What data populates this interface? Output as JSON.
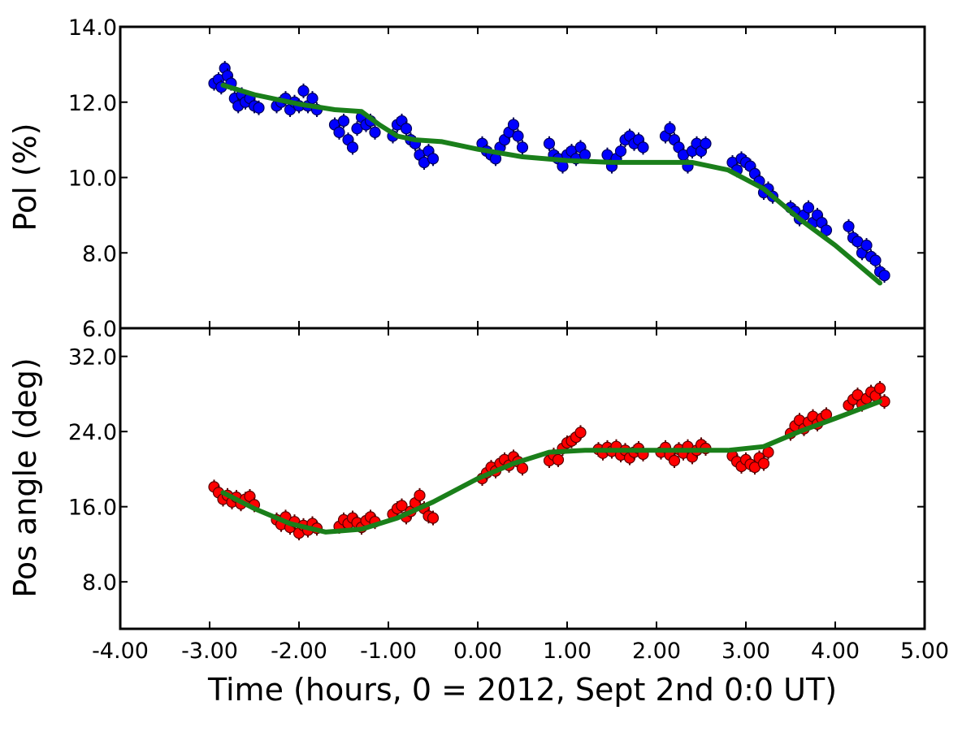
{
  "chart_data": [
    {
      "type": "scatter",
      "panel": "top",
      "xlabel": "",
      "ylabel": "Pol (%)",
      "xlim": [
        -4.0,
        5.0
      ],
      "ylim": [
        6.0,
        14.0
      ],
      "xticks": [
        -4.0,
        -3.0,
        -2.0,
        -1.0,
        0.0,
        1.0,
        2.0,
        3.0,
        4.0,
        5.0
      ],
      "yticks": [
        6.0,
        8.0,
        10.0,
        12.0,
        14.0
      ],
      "ytick_labels": [
        "6.0",
        "8.0",
        "10.0",
        "12.0",
        "14.0"
      ],
      "grid": false,
      "marker_color": "#0000ff",
      "line_color": "#1a7f1a",
      "series": [
        {
          "kind": "points",
          "x": [
            -2.95,
            -2.9,
            -2.87,
            -2.83,
            -2.8,
            -2.76,
            -2.72,
            -2.68,
            -2.64,
            -2.6,
            -2.55,
            -2.5,
            -2.45,
            -2.25,
            -2.2,
            -2.15,
            -2.1,
            -2.05,
            -2.0,
            -1.95,
            -1.9,
            -1.85,
            -1.8,
            -1.6,
            -1.55,
            -1.5,
            -1.45,
            -1.4,
            -1.35,
            -1.3,
            -1.25,
            -1.2,
            -1.15,
            -0.95,
            -0.9,
            -0.85,
            -0.8,
            -0.75,
            -0.7,
            -0.65,
            -0.6,
            -0.55,
            -0.5,
            0.05,
            0.1,
            0.15,
            0.2,
            0.25,
            0.3,
            0.35,
            0.4,
            0.45,
            0.5,
            0.8,
            0.85,
            0.9,
            0.95,
            1.0,
            1.05,
            1.1,
            1.15,
            1.2,
            1.45,
            1.5,
            1.55,
            1.6,
            1.65,
            1.7,
            1.75,
            1.8,
            1.85,
            2.1,
            2.15,
            2.2,
            2.25,
            2.3,
            2.35,
            2.4,
            2.45,
            2.5,
            2.55,
            2.85,
            2.9,
            2.95,
            3.0,
            3.05,
            3.1,
            3.15,
            3.2,
            3.25,
            3.3,
            3.5,
            3.55,
            3.6,
            3.65,
            3.7,
            3.75,
            3.8,
            3.85,
            3.9,
            4.15,
            4.2,
            4.25,
            4.3,
            4.35,
            4.4,
            4.45,
            4.5,
            4.55
          ],
          "y": [
            12.5,
            12.6,
            12.4,
            12.9,
            12.7,
            12.5,
            12.1,
            11.9,
            12.2,
            12.0,
            12.1,
            11.9,
            11.85,
            11.9,
            12.0,
            12.1,
            11.8,
            12.0,
            11.9,
            12.3,
            11.9,
            12.1,
            11.8,
            11.4,
            11.2,
            11.5,
            11.0,
            10.8,
            11.3,
            11.6,
            11.4,
            11.5,
            11.2,
            11.1,
            11.4,
            11.5,
            11.3,
            11.0,
            10.9,
            10.6,
            10.4,
            10.7,
            10.5,
            10.9,
            10.7,
            10.6,
            10.5,
            10.8,
            11.0,
            11.2,
            11.4,
            11.1,
            10.8,
            10.9,
            10.6,
            10.5,
            10.3,
            10.6,
            10.7,
            10.5,
            10.8,
            10.6,
            10.6,
            10.3,
            10.5,
            10.7,
            11.0,
            11.1,
            10.9,
            11.0,
            10.8,
            11.1,
            11.3,
            11.0,
            10.8,
            10.6,
            10.3,
            10.7,
            10.9,
            10.7,
            10.9,
            10.4,
            10.2,
            10.5,
            10.4,
            10.3,
            10.1,
            9.9,
            9.6,
            9.7,
            9.5,
            9.2,
            9.1,
            8.9,
            9.0,
            9.2,
            8.8,
            9.0,
            8.8,
            8.6,
            8.7,
            8.4,
            8.3,
            8.0,
            8.2,
            7.9,
            7.8,
            7.5,
            7.4
          ]
        },
        {
          "kind": "line",
          "x": [
            -2.85,
            -2.5,
            -2.0,
            -1.6,
            -1.3,
            -1.1,
            -0.9,
            -0.7,
            -0.4,
            0.0,
            0.5,
            1.0,
            1.5,
            2.0,
            2.4,
            2.8,
            3.2,
            3.6,
            4.0,
            4.3,
            4.5
          ],
          "y": [
            12.45,
            12.2,
            11.95,
            11.8,
            11.75,
            11.4,
            11.1,
            11.0,
            10.95,
            10.75,
            10.55,
            10.45,
            10.4,
            10.4,
            10.4,
            10.2,
            9.7,
            8.9,
            8.2,
            7.6,
            7.2
          ]
        }
      ]
    },
    {
      "type": "scatter",
      "panel": "bottom",
      "xlabel": "Time (hours, 0 = 2012, Sept 2nd 0:0 UT)",
      "ylabel": "Pos angle (deg)",
      "xlim": [
        -4.0,
        5.0
      ],
      "ylim": [
        3.0,
        35.0
      ],
      "xticks": [
        -4.0,
        -3.0,
        -2.0,
        -1.0,
        0.0,
        1.0,
        2.0,
        3.0,
        4.0,
        5.0
      ],
      "xtick_labels": [
        "-4.00",
        "-3.00",
        "-2.00",
        "-1.00",
        "0.00",
        "1.00",
        "2.00",
        "3.00",
        "4.00",
        "5.00"
      ],
      "yticks": [
        8.0,
        16.0,
        24.0,
        32.0
      ],
      "ytick_labels": [
        "8.0",
        "16.0",
        "24.0",
        "32.0"
      ],
      "grid": false,
      "marker_color": "#ff0000",
      "line_color": "#1a7f1a",
      "series": [
        {
          "kind": "points",
          "x": [
            -2.95,
            -2.9,
            -2.85,
            -2.8,
            -2.75,
            -2.7,
            -2.65,
            -2.6,
            -2.55,
            -2.5,
            -2.25,
            -2.2,
            -2.15,
            -2.1,
            -2.05,
            -2.0,
            -1.95,
            -1.9,
            -1.85,
            -1.8,
            -1.55,
            -1.5,
            -1.45,
            -1.4,
            -1.35,
            -1.3,
            -1.25,
            -1.2,
            -1.15,
            -0.95,
            -0.9,
            -0.85,
            -0.8,
            -0.75,
            -0.7,
            -0.65,
            -0.6,
            -0.55,
            -0.5,
            0.05,
            0.1,
            0.15,
            0.2,
            0.25,
            0.3,
            0.35,
            0.4,
            0.45,
            0.5,
            0.8,
            0.85,
            0.9,
            0.95,
            1.0,
            1.05,
            1.1,
            1.15,
            1.35,
            1.4,
            1.45,
            1.5,
            1.55,
            1.6,
            1.65,
            1.7,
            1.75,
            1.8,
            1.85,
            2.05,
            2.1,
            2.15,
            2.2,
            2.25,
            2.3,
            2.35,
            2.4,
            2.45,
            2.5,
            2.55,
            2.85,
            2.9,
            2.95,
            3.0,
            3.05,
            3.1,
            3.15,
            3.2,
            3.25,
            3.5,
            3.55,
            3.6,
            3.65,
            3.7,
            3.75,
            3.8,
            3.85,
            3.9,
            4.15,
            4.2,
            4.25,
            4.3,
            4.35,
            4.4,
            4.45,
            4.5,
            4.55
          ],
          "y": [
            18.1,
            17.5,
            16.8,
            17.2,
            16.5,
            17.0,
            16.3,
            16.8,
            17.1,
            16.2,
            14.6,
            14.1,
            14.9,
            13.8,
            14.4,
            13.2,
            14.0,
            13.5,
            14.2,
            13.7,
            13.9,
            14.6,
            14.2,
            14.8,
            14.3,
            13.8,
            14.5,
            14.9,
            14.4,
            15.2,
            15.8,
            16.1,
            14.9,
            15.5,
            16.4,
            17.2,
            15.8,
            15.0,
            14.8,
            19.0,
            19.6,
            20.2,
            19.8,
            20.6,
            21.0,
            20.4,
            21.3,
            20.8,
            20.1,
            20.9,
            21.5,
            21.0,
            22.2,
            22.8,
            23.0,
            23.4,
            23.9,
            22.1,
            21.7,
            22.3,
            21.9,
            22.4,
            21.5,
            22.0,
            21.2,
            21.8,
            22.2,
            21.6,
            21.8,
            22.3,
            21.5,
            20.9,
            22.1,
            21.7,
            22.4,
            21.3,
            22.0,
            22.6,
            22.2,
            21.4,
            20.8,
            20.3,
            21.0,
            20.5,
            20.2,
            21.2,
            20.6,
            21.8,
            23.8,
            24.6,
            25.2,
            24.3,
            25.0,
            25.6,
            24.8,
            25.4,
            25.8,
            26.8,
            27.4,
            27.9,
            26.9,
            27.5,
            28.2,
            27.8,
            28.6,
            27.2
          ]
        },
        {
          "kind": "line",
          "x": [
            -2.85,
            -2.5,
            -2.1,
            -1.7,
            -1.3,
            -0.9,
            -0.5,
            0.0,
            0.4,
            0.8,
            1.2,
            1.6,
            2.0,
            2.4,
            2.8,
            3.2,
            3.6,
            4.0,
            4.5
          ],
          "y": [
            17.5,
            15.8,
            14.2,
            13.3,
            13.6,
            14.8,
            16.5,
            19.0,
            20.6,
            21.8,
            22.0,
            22.0,
            22.0,
            22.0,
            22.0,
            22.4,
            24.0,
            25.4,
            27.2
          ]
        }
      ]
    }
  ]
}
